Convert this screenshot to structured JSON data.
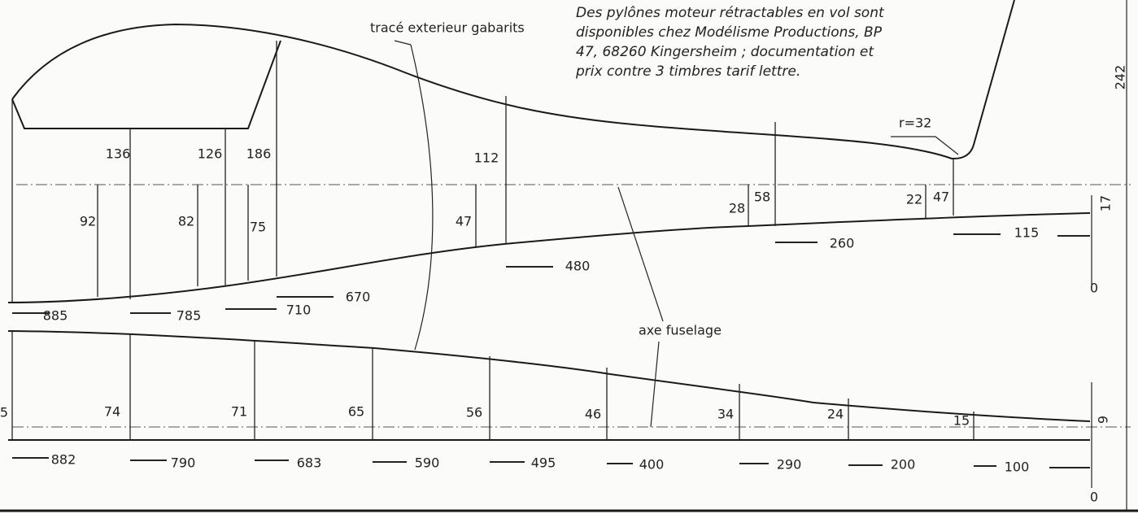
{
  "note": {
    "lines": [
      "Des pylônes moteur rétractables en vol sont",
      "disponibles chez Modélisme Productions, BP",
      "47, 68260 Kingersheim ; documentation et",
      "prix contre 3 timbres tarif lettre."
    ]
  },
  "labels": {
    "outline": "tracé exterieur gabarits",
    "axis": "axe fuselage",
    "radius": "r=32"
  },
  "top_view": {
    "heights_above": [
      136,
      126,
      186,
      112,
      58,
      47,
      242
    ],
    "heights_below": [
      92,
      82,
      75,
      47,
      28,
      22,
      17
    ],
    "stations": [
      885,
      785,
      710,
      670,
      480,
      260,
      115,
      0
    ]
  },
  "side_view": {
    "heights": [
      5,
      74,
      71,
      65,
      56,
      46,
      34,
      24,
      15,
      9
    ],
    "stations": [
      882,
      790,
      683,
      590,
      495,
      400,
      290,
      200,
      100,
      0
    ]
  }
}
